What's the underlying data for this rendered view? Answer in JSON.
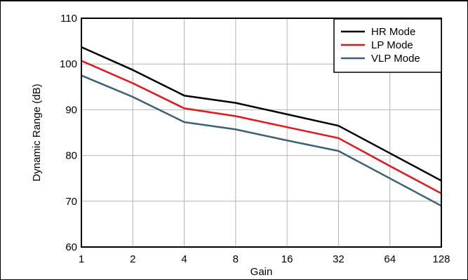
{
  "chart_data": {
    "type": "line",
    "title": "",
    "xlabel": "Gain",
    "ylabel": "Dynamic Range (dB)",
    "categories": [
      "1",
      "2",
      "4",
      "8",
      "16",
      "32",
      "64",
      "128"
    ],
    "x_scale": "log2",
    "ylim": [
      60,
      110
    ],
    "y_ticks": [
      60,
      70,
      80,
      90,
      100,
      110
    ],
    "grid": true,
    "legend_position": "top-right",
    "series": [
      {
        "name": "HR Mode",
        "color": "#000000",
        "values": [
          103.7,
          98.7,
          93.1,
          91.5,
          89.0,
          86.5,
          80.5,
          74.5
        ]
      },
      {
        "name": "LP Mode",
        "color": "#e8141b",
        "values": [
          100.7,
          95.8,
          90.3,
          88.6,
          86.2,
          83.8,
          77.7,
          71.7
        ]
      },
      {
        "name": "VLP Mode",
        "color": "#3b6178",
        "values": [
          97.5,
          92.8,
          87.3,
          85.7,
          83.3,
          81.0,
          75.0,
          69.0
        ]
      }
    ]
  }
}
